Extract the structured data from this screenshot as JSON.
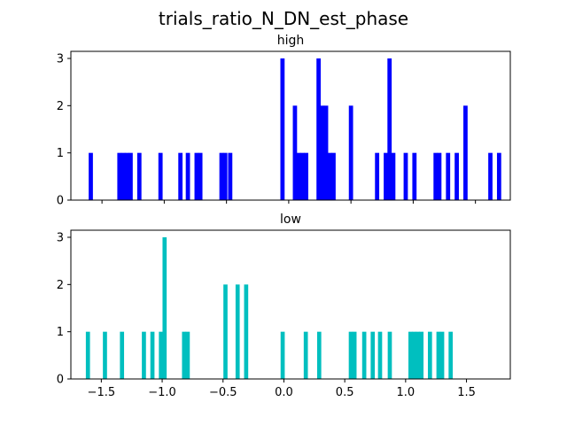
{
  "title": "trials_ratio_N_DN_est_phase",
  "chart_data": [
    {
      "type": "histogram",
      "title": "high",
      "color": "#0000ff",
      "bin_width": 0.034,
      "xlim": [
        -1.75,
        1.78
      ],
      "ylim": [
        0,
        3.15
      ],
      "yticks": [
        0,
        1,
        2,
        3
      ],
      "xticks": [
        -1.5,
        -1.0,
        -0.5,
        0.0,
        0.5,
        1.0,
        1.5
      ],
      "show_xtick_labels": false,
      "bins": [
        {
          "x": -1.59,
          "count": 1
        },
        {
          "x": -1.36,
          "count": 1
        },
        {
          "x": -1.33,
          "count": 1
        },
        {
          "x": -1.3,
          "count": 1
        },
        {
          "x": -1.27,
          "count": 1
        },
        {
          "x": -1.2,
          "count": 1
        },
        {
          "x": -1.03,
          "count": 1
        },
        {
          "x": -0.87,
          "count": 1
        },
        {
          "x": -0.81,
          "count": 1
        },
        {
          "x": -0.74,
          "count": 1
        },
        {
          "x": -0.71,
          "count": 1
        },
        {
          "x": -0.54,
          "count": 1
        },
        {
          "x": -0.51,
          "count": 1
        },
        {
          "x": -0.47,
          "count": 1
        },
        {
          "x": -0.05,
          "count": 3
        },
        {
          "x": 0.05,
          "count": 2
        },
        {
          "x": 0.08,
          "count": 1
        },
        {
          "x": 0.11,
          "count": 1
        },
        {
          "x": 0.14,
          "count": 1
        },
        {
          "x": 0.24,
          "count": 3
        },
        {
          "x": 0.27,
          "count": 2
        },
        {
          "x": 0.3,
          "count": 2
        },
        {
          "x": 0.33,
          "count": 1
        },
        {
          "x": 0.36,
          "count": 1
        },
        {
          "x": 0.5,
          "count": 2
        },
        {
          "x": 0.71,
          "count": 1
        },
        {
          "x": 0.78,
          "count": 1
        },
        {
          "x": 0.81,
          "count": 3
        },
        {
          "x": 0.84,
          "count": 1
        },
        {
          "x": 0.94,
          "count": 1
        },
        {
          "x": 1.01,
          "count": 1
        },
        {
          "x": 1.18,
          "count": 1
        },
        {
          "x": 1.21,
          "count": 1
        },
        {
          "x": 1.28,
          "count": 1
        },
        {
          "x": 1.35,
          "count": 1
        },
        {
          "x": 1.42,
          "count": 2
        },
        {
          "x": 1.62,
          "count": 1
        },
        {
          "x": 1.69,
          "count": 1
        }
      ]
    },
    {
      "type": "histogram",
      "title": "low",
      "color": "#00bfbf",
      "bin_width": 0.034,
      "xlim": [
        -1.75,
        1.86
      ],
      "ylim": [
        0,
        3.15
      ],
      "yticks": [
        0,
        1,
        2,
        3
      ],
      "xticks": [
        -1.5,
        -1.0,
        -0.5,
        0.0,
        0.5,
        1.0,
        1.5
      ],
      "show_xtick_labels": true,
      "xtick_labels": [
        "−1.5",
        "−1.0",
        "−0.5",
        "0.0",
        "0.5",
        "1.0",
        "1.5"
      ],
      "bins": [
        {
          "x": -1.61,
          "count": 1
        },
        {
          "x": -1.47,
          "count": 1
        },
        {
          "x": -1.33,
          "count": 1
        },
        {
          "x": -1.15,
          "count": 1
        },
        {
          "x": -1.08,
          "count": 1
        },
        {
          "x": -1.01,
          "count": 1
        },
        {
          "x": -0.98,
          "count": 3
        },
        {
          "x": -0.82,
          "count": 1
        },
        {
          "x": -0.79,
          "count": 1
        },
        {
          "x": -0.48,
          "count": 2
        },
        {
          "x": -0.38,
          "count": 2
        },
        {
          "x": -0.31,
          "count": 2
        },
        {
          "x": -0.01,
          "count": 1
        },
        {
          "x": 0.18,
          "count": 1
        },
        {
          "x": 0.29,
          "count": 1
        },
        {
          "x": 0.55,
          "count": 1
        },
        {
          "x": 0.58,
          "count": 1
        },
        {
          "x": 0.66,
          "count": 1
        },
        {
          "x": 0.73,
          "count": 1
        },
        {
          "x": 0.79,
          "count": 1
        },
        {
          "x": 0.87,
          "count": 1
        },
        {
          "x": 1.04,
          "count": 1
        },
        {
          "x": 1.07,
          "count": 1
        },
        {
          "x": 1.1,
          "count": 1
        },
        {
          "x": 1.13,
          "count": 1
        },
        {
          "x": 1.2,
          "count": 1
        },
        {
          "x": 1.27,
          "count": 1
        },
        {
          "x": 1.3,
          "count": 1
        },
        {
          "x": 1.37,
          "count": 1
        }
      ]
    }
  ]
}
